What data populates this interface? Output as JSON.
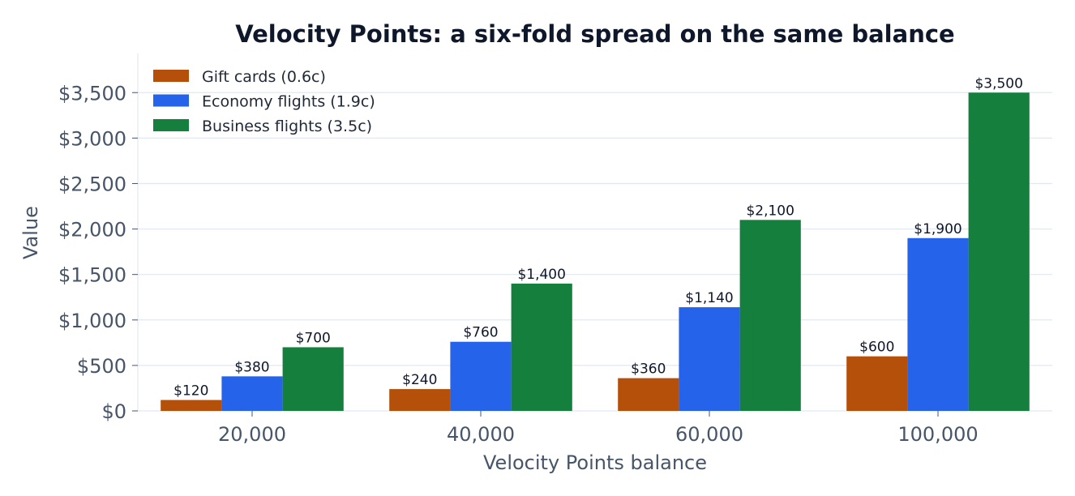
{
  "chart_data": {
    "type": "bar",
    "title": "Velocity Points: a six-fold spread on the same balance",
    "xlabel": "Velocity Points balance",
    "ylabel": "Value",
    "categories": [
      "20,000",
      "40,000",
      "60,000",
      "100,000"
    ],
    "series": [
      {
        "name": "Gift cards (0.6c)",
        "color": "#b5500b",
        "values": [
          120,
          240,
          360,
          600
        ],
        "labels": [
          "$120",
          "$240",
          "$360",
          "$600"
        ]
      },
      {
        "name": "Economy flights (1.9c)",
        "color": "#2563eb",
        "values": [
          380,
          760,
          1140,
          1900
        ],
        "labels": [
          "$380",
          "$760",
          "$1,140",
          "$1,900"
        ]
      },
      {
        "name": "Business flights (3.5c)",
        "color": "#15803d",
        "values": [
          700,
          1400,
          2100,
          3500
        ],
        "labels": [
          "$700",
          "$1,400",
          "$2,100",
          "$3,500"
        ]
      }
    ],
    "ylim": [
      0,
      3930
    ],
    "yticks": [
      0,
      500,
      1000,
      1500,
      2000,
      2500,
      3000,
      3500
    ],
    "ytick_labels": [
      "$0",
      "$500",
      "$1,000",
      "$1,500",
      "$2,000",
      "$2,500",
      "$3,000",
      "$3,500"
    ],
    "grid": true,
    "legend_position": "top-left",
    "colors": {
      "title": "#0f172a",
      "axis_text": "#475569",
      "grid": "#e2e8f0",
      "spine": "#e2e8f0",
      "data_label": "#0f172a"
    }
  }
}
